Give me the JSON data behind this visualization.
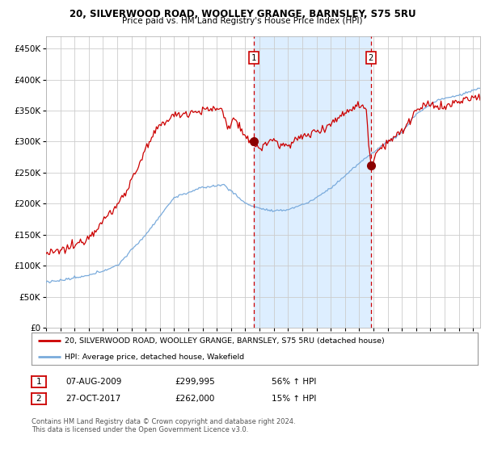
{
  "title1": "20, SILVERWOOD ROAD, WOOLLEY GRANGE, BARNSLEY, S75 5RU",
  "title2": "Price paid vs. HM Land Registry's House Price Index (HPI)",
  "xlim_start": 1995.0,
  "xlim_end": 2025.5,
  "ylim": [
    0,
    470000
  ],
  "yticks": [
    0,
    50000,
    100000,
    150000,
    200000,
    250000,
    300000,
    350000,
    400000,
    450000
  ],
  "sale1_date": 2009.6,
  "sale1_price": 299995,
  "sale2_date": 2017.82,
  "sale2_price": 262000,
  "sale1_label": "1",
  "sale2_label": "2",
  "shade_start": 2009.6,
  "shade_end": 2017.82,
  "legend_red": "20, SILVERWOOD ROAD, WOOLLEY GRANGE, BARNSLEY, S75 5RU (detached house)",
  "legend_blue": "HPI: Average price, detached house, Wakefield",
  "table_row1": [
    "1",
    "07-AUG-2009",
    "£299,995",
    "56% ↑ HPI"
  ],
  "table_row2": [
    "2",
    "27-OCT-2017",
    "£262,000",
    "15% ↑ HPI"
  ],
  "footnote": "Contains HM Land Registry data © Crown copyright and database right 2024.\nThis data is licensed under the Open Government Licence v3.0.",
  "red_color": "#cc0000",
  "blue_color": "#7aabdc",
  "shade_color": "#ddeeff",
  "grid_color": "#cccccc",
  "bg_color": "#ffffff",
  "marker_color": "#8b0000"
}
